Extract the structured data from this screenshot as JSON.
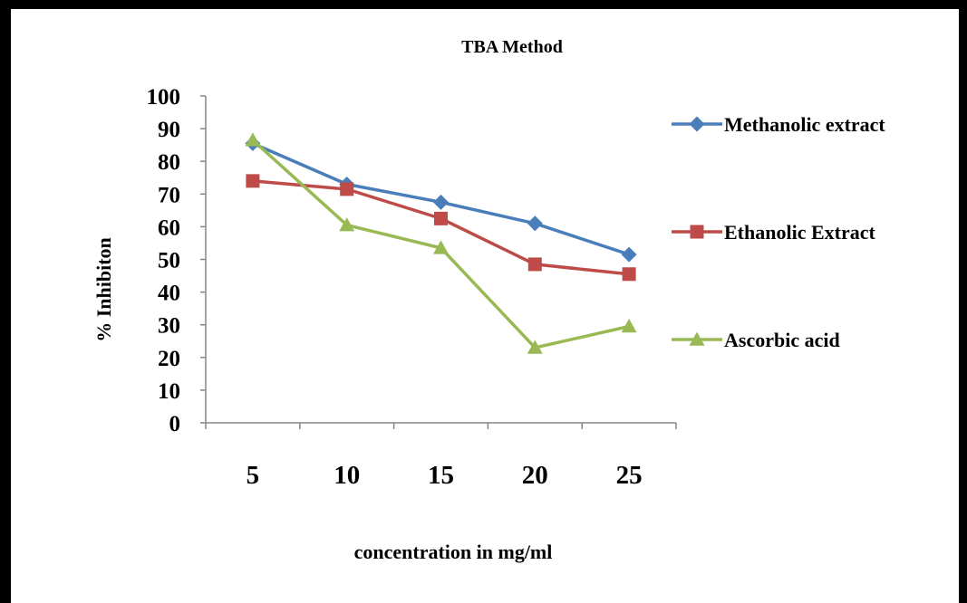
{
  "chart_data": {
    "type": "line",
    "title": "TBA Method",
    "xlabel": "concentration in mg/ml",
    "ylabel": "% Inhibiton",
    "categories": [
      "5",
      "10",
      "15",
      "20",
      "25"
    ],
    "ylim": [
      0,
      100
    ],
    "yticks": [
      "0",
      "10",
      "20",
      "30",
      "40",
      "50",
      "60",
      "70",
      "80",
      "90",
      "100"
    ],
    "grid": false,
    "legend_position": "right",
    "series": [
      {
        "name": "Methanolic extract",
        "values": [
          85.5,
          73,
          67.5,
          61,
          51.5
        ],
        "color": "#4a7ebb",
        "marker": "diamond"
      },
      {
        "name": "Ethanolic Extract",
        "values": [
          74,
          71.5,
          62.5,
          48.5,
          45.5
        ],
        "color": "#be4b48",
        "marker": "square"
      },
      {
        "name": "Ascorbic acid",
        "values": [
          86.5,
          60.5,
          53.5,
          23,
          29.5
        ],
        "color": "#98b954",
        "marker": "triangle"
      }
    ]
  }
}
